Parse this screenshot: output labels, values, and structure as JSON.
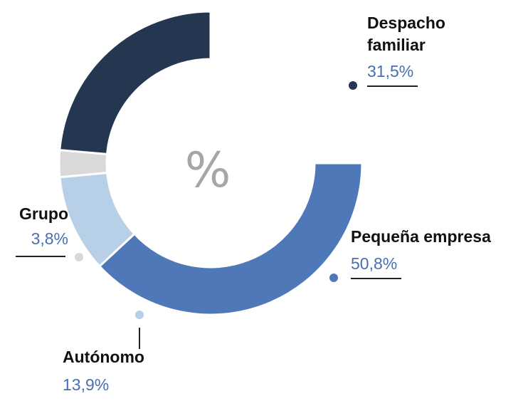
{
  "chart_data": {
    "type": "pie",
    "center_label": "%",
    "series": [
      {
        "name": "Pequeña empresa",
        "value": 50.8,
        "label": "50,8%",
        "color": "#4f78b8"
      },
      {
        "name": "Autónomo",
        "value": 13.9,
        "label": "13,9%",
        "color": "#b8cfe8"
      },
      {
        "name": "Grupo",
        "value": 3.8,
        "label": "3,8%",
        "color": "#d9d9d9"
      },
      {
        "name": "Despacho familiar",
        "value": 31.5,
        "label": "31,5%",
        "color": "#253650"
      }
    ],
    "value_color": "#4a6fb0"
  }
}
